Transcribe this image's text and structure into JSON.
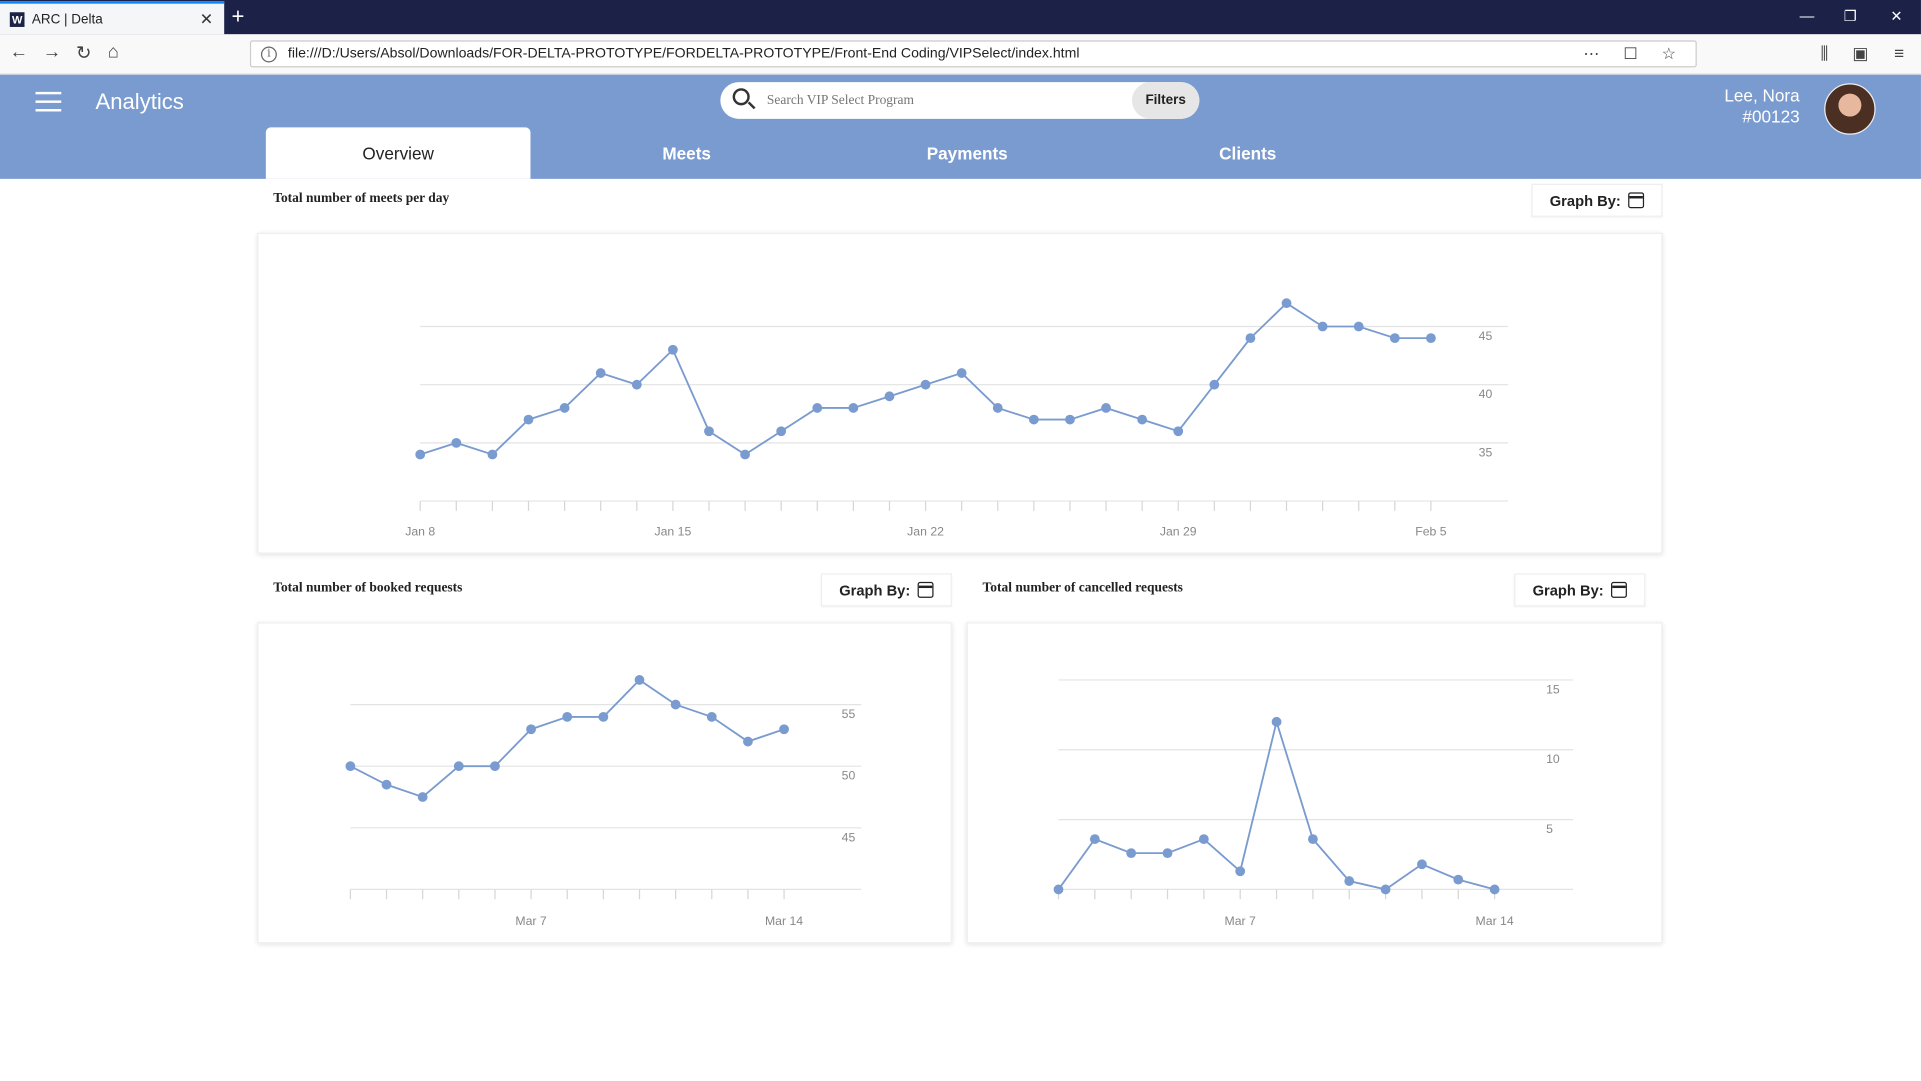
{
  "browser": {
    "tab_title": "ARC | Delta",
    "favicon_letter": "W",
    "url": "file:///D:/Users/Absol/Downloads/FOR-DELTA-PROTOTYPE/FORDELTA-PROTOTYPE/Front-End Coding/VIPSelect/index.html"
  },
  "header": {
    "title": "Analytics",
    "search_placeholder": "Search VIP Select Program",
    "filters_label": "Filters",
    "user_name": "Lee, Nora",
    "user_id": "#00123"
  },
  "tabs": [
    {
      "label": "Overview",
      "active": true
    },
    {
      "label": "Meets",
      "active": false
    },
    {
      "label": "Payments",
      "active": false
    },
    {
      "label": "Clients",
      "active": false
    }
  ],
  "graph_by_label": "Graph By:",
  "colors": {
    "accent": "#7a9bcf",
    "line": "#7a9bcf"
  },
  "chart_data": [
    {
      "type": "line",
      "title": "Total number of meets per day",
      "x_tick_labels": [
        "Jan 8",
        "Jan 15",
        "Jan 22",
        "Jan 29",
        "Feb 5"
      ],
      "x_tick_indices": [
        0,
        7,
        14,
        21,
        28
      ],
      "values": [
        34,
        35,
        34,
        37,
        38,
        41,
        40,
        43,
        36,
        34,
        36,
        38,
        38,
        39,
        40,
        41,
        38,
        37,
        37,
        38,
        37,
        36,
        40,
        44,
        47,
        45,
        45,
        44,
        44
      ],
      "y_ticks": [
        35,
        40,
        45
      ],
      "ylim": [
        30,
        48
      ],
      "grid": true
    },
    {
      "type": "line",
      "title": "Total number of booked requests",
      "x_tick_labels": [
        "Mar 7",
        "Mar 14"
      ],
      "x_tick_indices": [
        5,
        12
      ],
      "values": [
        50,
        48.5,
        47.5,
        50,
        50,
        53,
        54,
        54,
        57,
        55,
        54,
        52,
        53
      ],
      "y_ticks": [
        45,
        50,
        55
      ],
      "ylim": [
        40,
        57
      ],
      "grid": true
    },
    {
      "type": "line",
      "title": "Total number of cancelled requests",
      "x_tick_labels": [
        "Mar 7",
        "Mar 14"
      ],
      "x_tick_indices": [
        5,
        12
      ],
      "values": [
        0,
        3.6,
        2.6,
        2.6,
        3.6,
        1.3,
        12,
        3.6,
        0.6,
        0,
        1.8,
        0.7,
        0
      ],
      "y_ticks": [
        5,
        10,
        15
      ],
      "ylim": [
        0,
        15
      ],
      "grid": true
    }
  ]
}
